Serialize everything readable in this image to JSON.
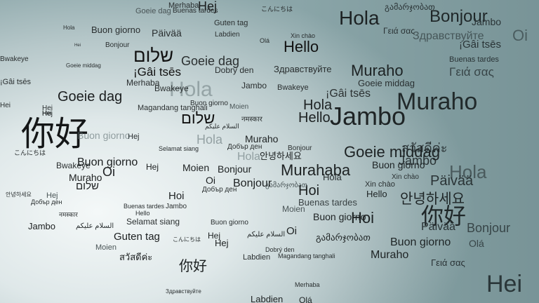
{
  "greetings": [
    "Merhaba",
    "Hej",
    "Hola",
    "Hello",
    "Bonjour",
    "Hei",
    "Goeie dag",
    "Buenas tardes",
    "こんにちは",
    "Guten tag",
    "Labdien",
    "Olá",
    "Xin chào",
    "Здравствуйте",
    "Buon giorno",
    "Päivää",
    "שלום",
    "Bwakeye",
    "¡Gâi tsēs",
    "Dobrý den",
    "Hola",
    "Hello",
    "Muraho",
    "Jambo",
    "Goeie middag",
    "Magandang tanghali",
    "Selamat siang",
    "你好",
    "Moien",
    "Oi",
    "Hoi",
    "สวัสดีค่ะ",
    "Γειά σας",
    "안녕하세요",
    "Добър ден",
    "नमस्कार",
    "السلام عليكم",
    "გამარჯობათ",
    "Bonjour",
    "Murahaba",
    "Jambo",
    "你好",
    "Hei",
    "Muraho",
    "Hola",
    "Buenas tardes",
    "Oi",
    "Hoi",
    "Olá",
    "Päivää"
  ]
}
